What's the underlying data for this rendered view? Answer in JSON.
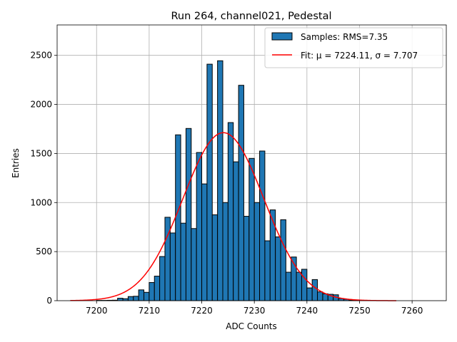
{
  "chart_data": {
    "type": "bar",
    "title": "Run 264, channel021, Pedestal",
    "xlabel": "ADC Counts",
    "ylabel": "Entries",
    "xlim": [
      7192.5,
      7266.5
    ],
    "ylim": [
      0,
      2810
    ],
    "xticks": [
      7200,
      7210,
      7220,
      7230,
      7240,
      7250,
      7260
    ],
    "yticks": [
      0,
      500,
      1000,
      1500,
      2000,
      2500
    ],
    "grid": true,
    "legend_position": "top-right",
    "bin_width": 1,
    "bar_color": "#1f77b4",
    "fit_color": "#ff0000",
    "series": [
      {
        "name": "Samples: RMS=7.35",
        "type": "histogram",
        "bins": [
          [
            7200,
            3
          ],
          [
            7201,
            3
          ],
          [
            7202,
            4
          ],
          [
            7203,
            5
          ],
          [
            7204,
            25
          ],
          [
            7205,
            20
          ],
          [
            7206,
            42
          ],
          [
            7207,
            45
          ],
          [
            7208,
            110
          ],
          [
            7209,
            85
          ],
          [
            7210,
            185
          ],
          [
            7211,
            250
          ],
          [
            7212,
            450
          ],
          [
            7213,
            850
          ],
          [
            7214,
            690
          ],
          [
            7215,
            1690
          ],
          [
            7216,
            790
          ],
          [
            7217,
            1755
          ],
          [
            7218,
            735
          ],
          [
            7219,
            1510
          ],
          [
            7220,
            1190
          ],
          [
            7221,
            2410
          ],
          [
            7222,
            875
          ],
          [
            7223,
            2445
          ],
          [
            7224,
            1000
          ],
          [
            7225,
            1815
          ],
          [
            7226,
            1415
          ],
          [
            7227,
            2195
          ],
          [
            7228,
            860
          ],
          [
            7229,
            1450
          ],
          [
            7230,
            1000
          ],
          [
            7231,
            1525
          ],
          [
            7232,
            610
          ],
          [
            7233,
            925
          ],
          [
            7234,
            650
          ],
          [
            7235,
            825
          ],
          [
            7236,
            290
          ],
          [
            7237,
            445
          ],
          [
            7238,
            290
          ],
          [
            7239,
            320
          ],
          [
            7240,
            130
          ],
          [
            7241,
            215
          ],
          [
            7242,
            90
          ],
          [
            7243,
            70
          ],
          [
            7244,
            65
          ],
          [
            7245,
            60
          ],
          [
            7246,
            22
          ],
          [
            7247,
            15
          ],
          [
            7248,
            5
          ],
          [
            7249,
            3
          ]
        ]
      },
      {
        "name": "Fit: μ = 7224.11, σ = 7.707",
        "type": "gaussian-fit",
        "mu": 7224.11,
        "sigma": 7.707,
        "amplitude": 1712,
        "x_range": [
          7195,
          7257
        ]
      }
    ]
  }
}
